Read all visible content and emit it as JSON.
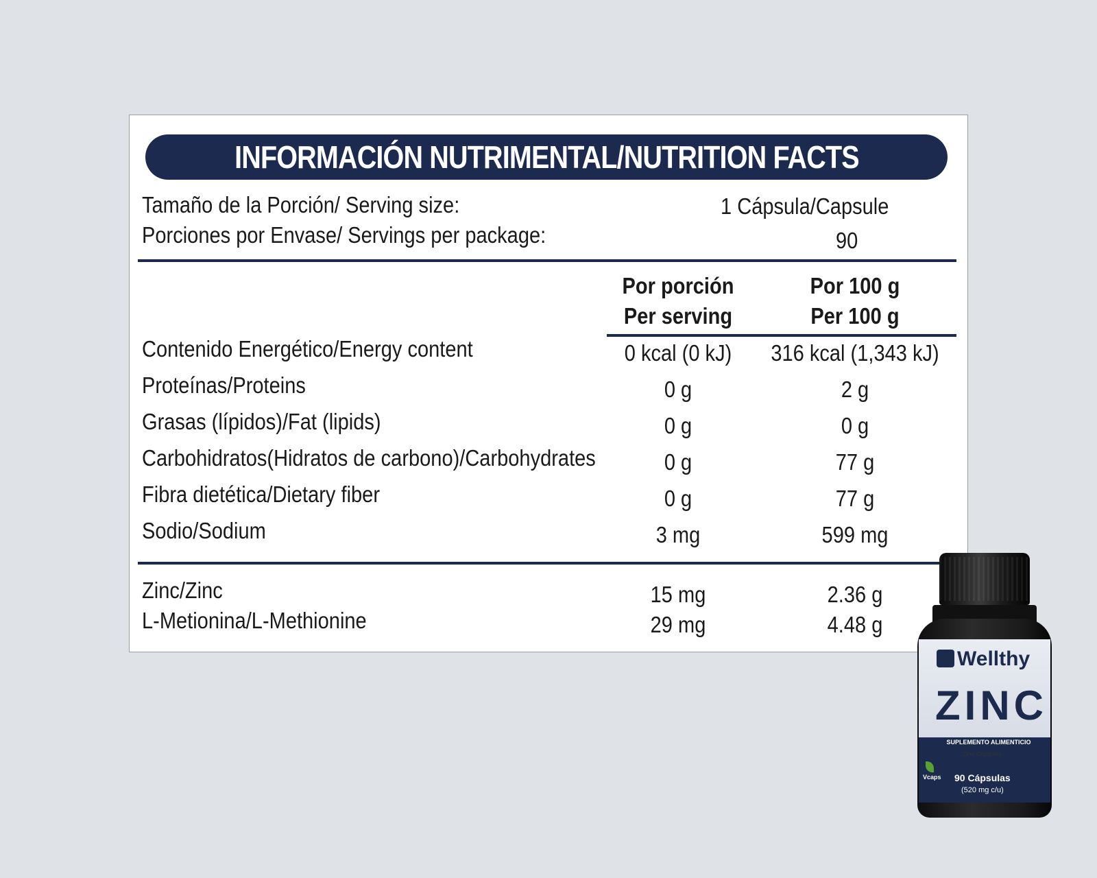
{
  "header": {
    "title": "INFORMACIÓN NUTRIMENTAL/NUTRITION FACTS"
  },
  "serving": {
    "size_label": "Tamaño de la Porción/ Serving size:",
    "size_value": "1 Cápsula/Capsule",
    "per_package_label": "Porciones por Envase/ Servings per package:",
    "per_package_value": "90"
  },
  "columns": {
    "col1_line1": "Por porción",
    "col1_line2": "Per serving",
    "col2_line1": "Por 100 g",
    "col2_line2": "Per 100 g"
  },
  "rows": [
    {
      "name": "Contenido Energético/Energy content",
      "per_serving": "0 kcal (0 kJ)",
      "per_100g": "316 kcal (1,343 kJ)"
    },
    {
      "name": "Proteínas/Proteins",
      "per_serving": "0 g",
      "per_100g": "2 g"
    },
    {
      "name": "Grasas (lípidos)/Fat (lipids)",
      "per_serving": "0 g",
      "per_100g": "0 g"
    },
    {
      "name": "Carbohidratos(Hidratos de carbono)/Carbohydrates",
      "per_serving": "0 g",
      "per_100g": "77 g"
    },
    {
      "name": "Fibra dietética/Dietary fiber",
      "per_serving": "0 g",
      "per_100g": "77 g"
    },
    {
      "name": "Sodio/Sodium",
      "per_serving": "3 mg",
      "per_100g": "599 mg"
    }
  ],
  "extra_rows": [
    {
      "name": "Zinc/Zinc",
      "per_serving": "15 mg",
      "per_100g": "2.36 g"
    },
    {
      "name": "L-Metionina/L-Methionine",
      "per_serving": "29 mg",
      "per_100g": "4.48 g"
    }
  ],
  "product": {
    "brand": "Wellthy",
    "name": "ZINC",
    "category": "SUPLEMENTO ALIMENTICIO",
    "subtitle": "Zinc Capsules",
    "count": "90 Cápsulas",
    "dose": "(520 mg c/u)",
    "vcaps": "Vcaps"
  },
  "colors": {
    "navy": "#1b2a4e",
    "background": "#dfe2e6"
  }
}
